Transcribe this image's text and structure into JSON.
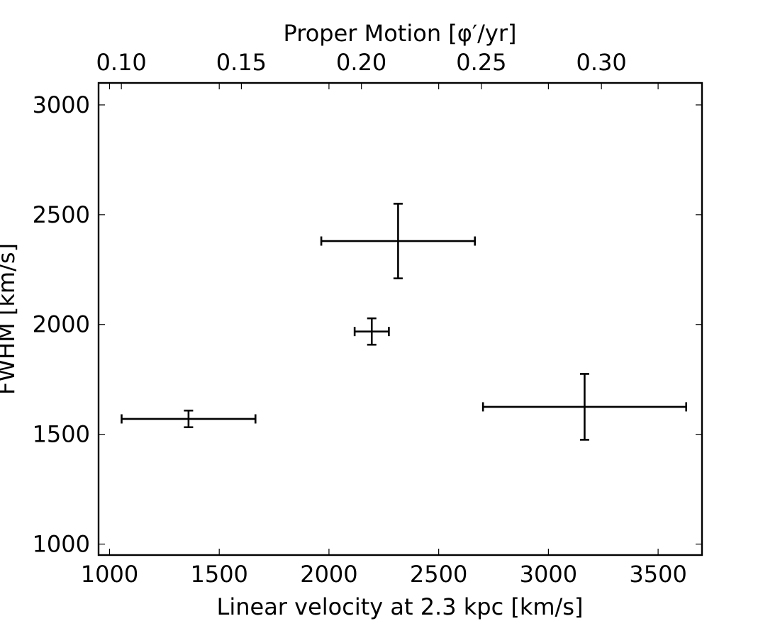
{
  "chart_data": {
    "type": "scatter",
    "title": "",
    "xlabel": "Linear velocity at 2.3 kpc [km/s]",
    "ylabel": "FWHM [km/s]",
    "top_xlabel": "Proper Motion [φ′/yr]",
    "xlim": [
      950,
      3700
    ],
    "ylim": [
      950,
      3100
    ],
    "top_xlim": [
      0.0905,
      0.3419
    ],
    "x_ticks": [
      1000,
      1500,
      2000,
      2500,
      3000,
      3500
    ],
    "y_ticks": [
      1000,
      1500,
      2000,
      2500,
      3000
    ],
    "top_x_ticks": [
      "0.10",
      "0.15",
      "0.20",
      "0.25",
      "0.30"
    ],
    "grid": false,
    "marker": "error bars only",
    "points": [
      {
        "x": 1360,
        "y": 1570,
        "xerr": 305,
        "yerr": 38
      },
      {
        "x": 2195,
        "y": 1968,
        "xerr": 78,
        "yerr": 60
      },
      {
        "x": 2315,
        "y": 2380,
        "xerr": 350,
        "yerr": 170
      },
      {
        "x": 3165,
        "y": 1625,
        "xerr": 463,
        "yerr": 150
      }
    ]
  }
}
